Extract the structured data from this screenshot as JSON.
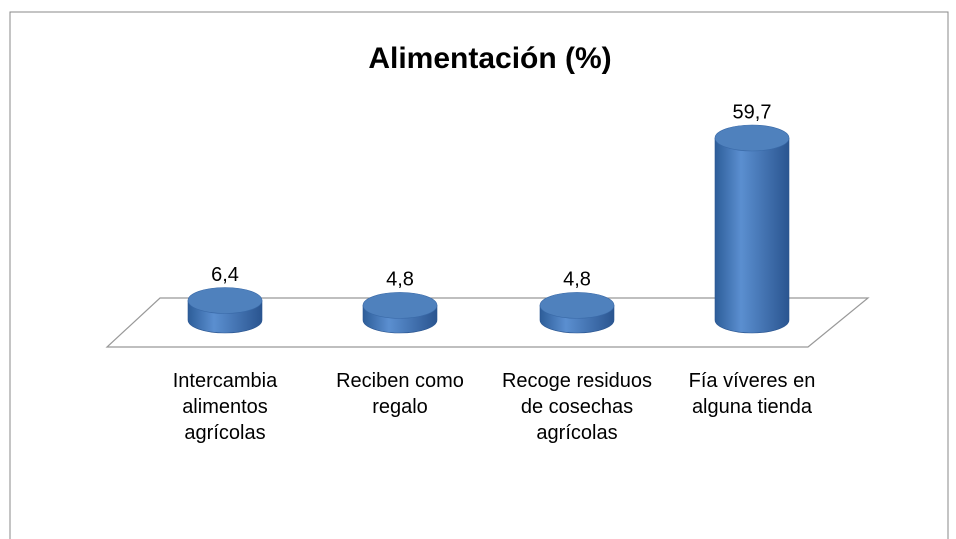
{
  "chart_data": {
    "type": "bar3d",
    "title": "Alimentación (%)",
    "categories": [
      "Intercambia alimentos agrícolas",
      "Reciben como regalo",
      "Recoge residuos de cosechas agrícolas",
      "Fía víveres en alguna tienda"
    ],
    "values": [
      6.4,
      4.8,
      4.8,
      59.7
    ],
    "value_labels": [
      "6,4",
      "4,8",
      "4,8",
      "59,7"
    ],
    "color": "#4f81bd"
  }
}
